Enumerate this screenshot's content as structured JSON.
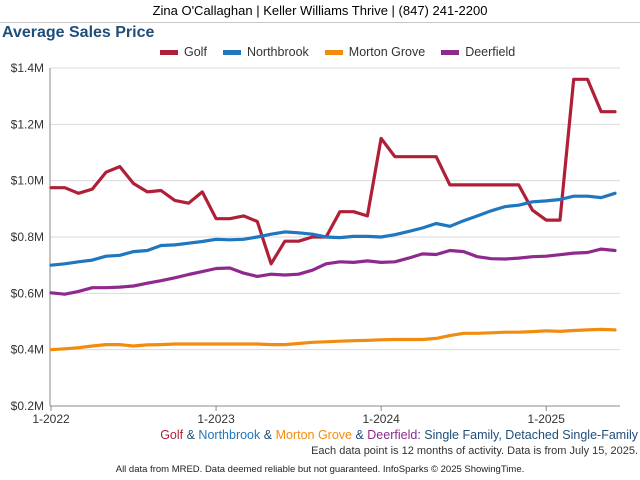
{
  "header": {
    "contact": "Zina O'Callaghan | Keller Williams Thrive | (847) 241-2200"
  },
  "colors": {
    "golf": "#b01f38",
    "northbrook": "#1f77bf",
    "morton_grove": "#f28c0f",
    "deerfield": "#8e2a8e",
    "title": "#1f4e79",
    "grid": "#d9d9d9",
    "subtitle_text": "#1f4e79"
  },
  "subtitle": {
    "golf": "Golf",
    "amp1": " & ",
    "northbrook": "Northbrook",
    "amp2": " & ",
    "morton_grove": "Morton Grove",
    "amp3": " & ",
    "deerfield": "Deerfield",
    "rest": ": Single Family, Detached Single-Family"
  },
  "note": "Each data point is 12 months of activity. Data is from July 15, 2025.",
  "footer": "All data from MRED. Data deemed reliable but not guaranteed. InfoSparks © 2025 ShowingTime.",
  "chart_data": {
    "type": "line",
    "title": "Average Sales Price",
    "legend_position": "top",
    "grid": "horizontal",
    "ylim": [
      200000,
      1400000
    ],
    "yticks": [
      {
        "value": 200000,
        "label": "$0.2M"
      },
      {
        "value": 400000,
        "label": "$0.4M"
      },
      {
        "value": 600000,
        "label": "$0.6M"
      },
      {
        "value": 800000,
        "label": "$0.8M"
      },
      {
        "value": 1000000,
        "label": "$1.0M"
      },
      {
        "value": 1200000,
        "label": "$1.2M"
      },
      {
        "value": 1400000,
        "label": "$1.4M"
      }
    ],
    "xticks": [
      {
        "value": "2022-01",
        "label": "1-2022"
      },
      {
        "value": "2023-01",
        "label": "1-2023"
      },
      {
        "value": "2024-01",
        "label": "1-2024"
      },
      {
        "value": "2025-01",
        "label": "1-2025"
      }
    ],
    "x": [
      "2022-01",
      "2022-02",
      "2022-03",
      "2022-04",
      "2022-05",
      "2022-06",
      "2022-07",
      "2022-08",
      "2022-09",
      "2022-10",
      "2022-11",
      "2022-12",
      "2023-01",
      "2023-02",
      "2023-03",
      "2023-04",
      "2023-05",
      "2023-06",
      "2023-07",
      "2023-08",
      "2023-09",
      "2023-10",
      "2023-11",
      "2023-12",
      "2024-01",
      "2024-02",
      "2024-03",
      "2024-04",
      "2024-05",
      "2024-06",
      "2024-07",
      "2024-08",
      "2024-09",
      "2024-10",
      "2024-11",
      "2024-12",
      "2025-01",
      "2025-02",
      "2025-03",
      "2025-04",
      "2025-05",
      "2025-06"
    ],
    "series": [
      {
        "key": "golf",
        "name": "Golf",
        "values": [
          975000,
          975000,
          955000,
          970000,
          1030000,
          1050000,
          990000,
          960000,
          965000,
          930000,
          920000,
          960000,
          865000,
          865000,
          875000,
          855000,
          705000,
          785000,
          785000,
          800000,
          800000,
          890000,
          890000,
          875000,
          1150000,
          1085000,
          1085000,
          1085000,
          1085000,
          985000,
          985000,
          985000,
          985000,
          985000,
          985000,
          895000,
          860000,
          860000,
          1360000,
          1360000,
          1245000,
          1245000
        ]
      },
      {
        "key": "northbrook",
        "name": "Northbrook",
        "values": [
          700000,
          705000,
          712000,
          718000,
          732000,
          735000,
          748000,
          752000,
          770000,
          772000,
          778000,
          784000,
          792000,
          790000,
          792000,
          800000,
          810000,
          818000,
          815000,
          810000,
          800000,
          798000,
          802000,
          802000,
          800000,
          808000,
          820000,
          832000,
          848000,
          838000,
          858000,
          875000,
          893000,
          908000,
          913000,
          925000,
          928000,
          933000,
          945000,
          945000,
          940000,
          955000
        ]
      },
      {
        "key": "morton_grove",
        "name": "Morton Grove",
        "values": [
          400000,
          403000,
          407000,
          413000,
          418000,
          418000,
          413000,
          417000,
          418000,
          420000,
          420000,
          420000,
          420000,
          420000,
          420000,
          420000,
          418000,
          418000,
          422000,
          426000,
          428000,
          430000,
          432000,
          433000,
          435000,
          436000,
          436000,
          436000,
          440000,
          450000,
          458000,
          458000,
          460000,
          462000,
          462000,
          464000,
          467000,
          465000,
          468000,
          470000,
          472000,
          470000
        ]
      },
      {
        "key": "deerfield",
        "name": "Deerfield",
        "values": [
          602000,
          597000,
          607000,
          620000,
          620000,
          622000,
          626000,
          636000,
          645000,
          655000,
          667000,
          677000,
          688000,
          690000,
          672000,
          660000,
          668000,
          665000,
          668000,
          682000,
          705000,
          712000,
          710000,
          715000,
          710000,
          712000,
          725000,
          740000,
          738000,
          752000,
          748000,
          730000,
          723000,
          722000,
          725000,
          730000,
          732000,
          737000,
          743000,
          745000,
          757000,
          752000
        ]
      }
    ]
  }
}
